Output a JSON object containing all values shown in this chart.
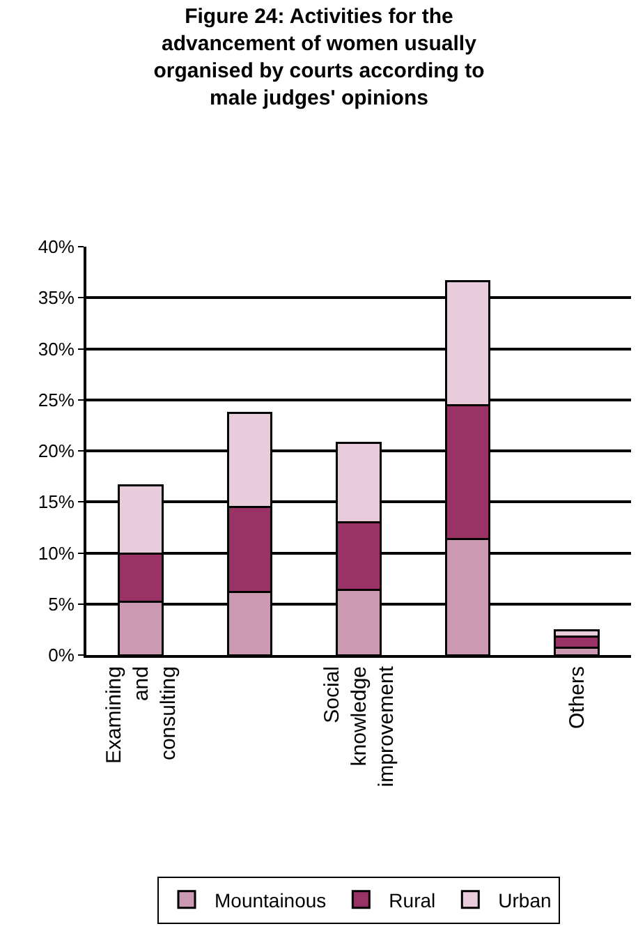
{
  "chart_data": {
    "type": "bar",
    "title": "Figure 24: Activities for the advancement of women usually organised by courts according to male judges' opinions",
    "categories": [
      "Examining and consulting",
      null,
      "Social knowledge improvement",
      null,
      "Others"
    ],
    "stacked": true,
    "series": [
      {
        "name": "Mountainous",
        "color": "#cc99b2",
        "values": [
          5.2,
          6.2,
          6.4,
          11.4,
          0.7
        ]
      },
      {
        "name": "Rural",
        "color": "#993366",
        "values": [
          4.7,
          8.3,
          6.6,
          13.1,
          1.1
        ]
      },
      {
        "name": "Urban",
        "color": "#e8ccdb",
        "values": [
          6.7,
          9.2,
          7.8,
          12.1,
          0.6
        ]
      }
    ],
    "ylim": [
      0,
      40
    ],
    "yticks": [
      {
        "value": 0,
        "label": "0%"
      },
      {
        "value": 5,
        "label": "5%"
      },
      {
        "value": 10,
        "label": "10%"
      },
      {
        "value": 15,
        "label": "15%"
      },
      {
        "value": 20,
        "label": "20%"
      },
      {
        "value": 25,
        "label": "25%"
      },
      {
        "value": 30,
        "label": "30%"
      },
      {
        "value": 35,
        "label": "35%"
      },
      {
        "value": 40,
        "label": "40%"
      }
    ],
    "grid": "y",
    "legend": "bottom"
  }
}
